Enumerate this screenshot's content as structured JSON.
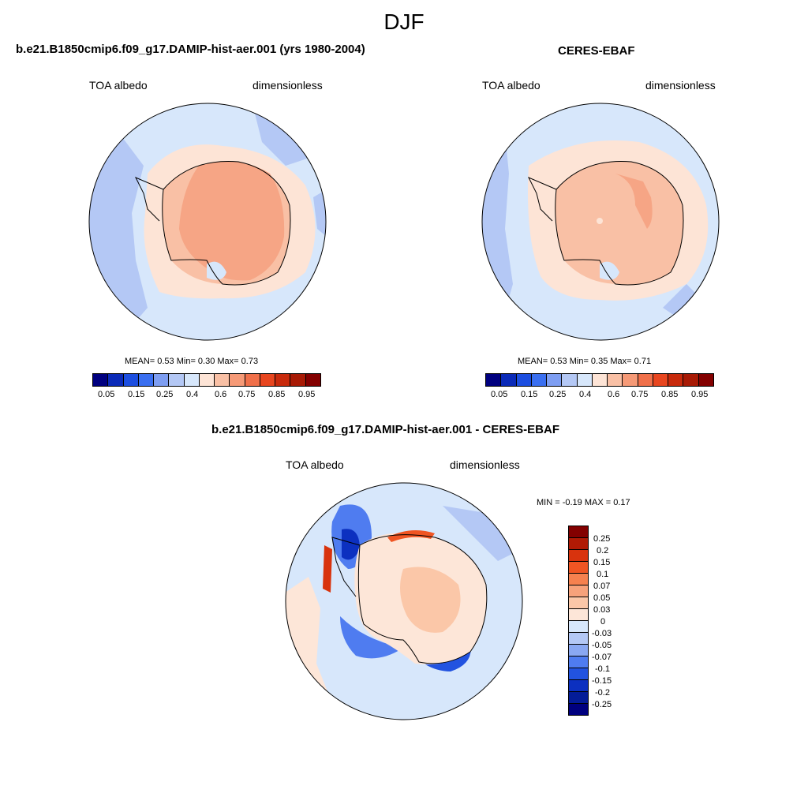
{
  "season": "DJF",
  "panels": [
    {
      "title": "b.e21.B1850cmip6.f09_g17.DAMIP-hist-aer.001 (yrs 1980-2004)",
      "variable": "TOA albedo",
      "units": "dimensionless",
      "stats": "MEAN=   0.53   Min=    0.30   Max=    0.73"
    },
    {
      "title": "CERES-EBAF",
      "variable": "TOA albedo",
      "units": "dimensionless",
      "stats": "MEAN=   0.53   Min=    0.35   Max=    0.71"
    },
    {
      "title": "b.e21.B1850cmip6.f09_g17.DAMIP-hist-aer.001 - CERES-EBAF",
      "variable": "TOA albedo",
      "units": "dimensionless",
      "stats": "MIN =  -0.19 MAX =   0.17"
    }
  ],
  "colorbar_abs": {
    "labels": [
      "0.05",
      "0.15",
      "0.25",
      "0.4",
      "0.6",
      "0.75",
      "0.85",
      "0.95"
    ],
    "colors": [
      "#00007f",
      "#0a2ab8",
      "#1c4ee0",
      "#3a6ff0",
      "#7e9ef2",
      "#b4c8f5",
      "#d7e7fb",
      "#fde4d6",
      "#f9c0a5",
      "#f69a77",
      "#f0704a",
      "#e8461f",
      "#c82a0c",
      "#a81a05",
      "#830000"
    ]
  },
  "colorbar_diff": {
    "labels": [
      "0.25",
      "0.2",
      "0.15",
      "0.1",
      "0.07",
      "0.05",
      "0.03",
      "0",
      "-0.03",
      "-0.05",
      "-0.07",
      "-0.1",
      "-0.15",
      "-0.2",
      "-0.25"
    ],
    "colors": [
      "#830000",
      "#b01a05",
      "#d8330d",
      "#f05523",
      "#f6814f",
      "#f7a27b",
      "#fbc7a8",
      "#fde6d8",
      "#d7e7fb",
      "#b4c8f5",
      "#8aa8f2",
      "#4f7cf0",
      "#2253e0",
      "#0c30c0",
      "#041c98",
      "#00007f"
    ]
  }
}
